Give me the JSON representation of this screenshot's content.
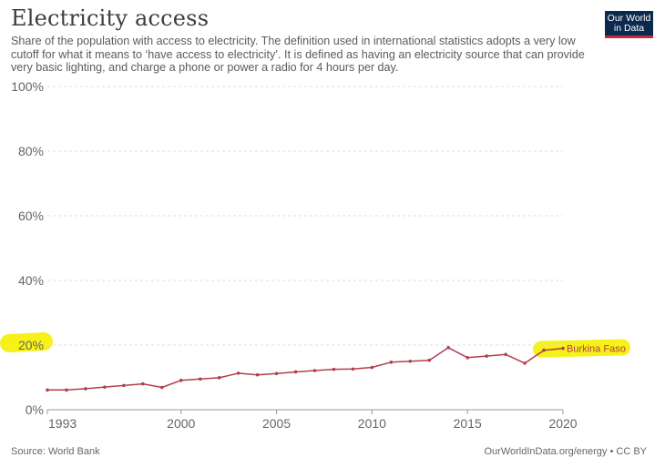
{
  "header": {
    "title": "Electricity access",
    "subtitle": "Share of the population with access to electricity. The definition used in international statistics adopts a very low cutoff for what it means to ‘have access to electricity’. It is defined as having an electricity source that can provide very basic lighting, and charge a phone or power a radio for 4 hours per day."
  },
  "logo": {
    "line1": "Our World",
    "line2": "in Data"
  },
  "footer": {
    "source": "Source: World Bank",
    "url": "OurWorldInData.org/energy • CC BY"
  },
  "colors": {
    "series": "#b13f4f",
    "highlight": "#f5ef00",
    "grid": "#dddddd"
  },
  "chart_data": {
    "type": "line",
    "title": "Electricity access",
    "xlim": [
      1993,
      2020
    ],
    "ylim": [
      0,
      100
    ],
    "x_ticks": [
      "1993",
      "2000",
      "2005",
      "2010",
      "2015",
      "2020"
    ],
    "x_tick_values": [
      1993,
      2000,
      2005,
      2010,
      2015,
      2020
    ],
    "y_ticks": [
      "0%",
      "20%",
      "40%",
      "60%",
      "80%",
      "100%"
    ],
    "y_tick_values": [
      0,
      20,
      40,
      60,
      80,
      100
    ],
    "grid": true,
    "series": [
      {
        "name": "Burkina Faso",
        "x": [
          1993,
          1994,
          1995,
          1996,
          1997,
          1998,
          1999,
          2000,
          2001,
          2002,
          2003,
          2004,
          2005,
          2006,
          2007,
          2008,
          2009,
          2010,
          2011,
          2012,
          2013,
          2014,
          2015,
          2016,
          2017,
          2018,
          2019,
          2020
        ],
        "y": [
          6.1,
          6.1,
          6.5,
          7.0,
          7.5,
          8.0,
          6.9,
          9.1,
          9.5,
          9.9,
          11.3,
          10.8,
          11.2,
          11.7,
          12.1,
          12.5,
          12.6,
          13.1,
          14.7,
          15.0,
          15.3,
          19.2,
          16.1,
          16.6,
          17.1,
          14.4,
          18.4,
          19.0
        ]
      }
    ]
  }
}
